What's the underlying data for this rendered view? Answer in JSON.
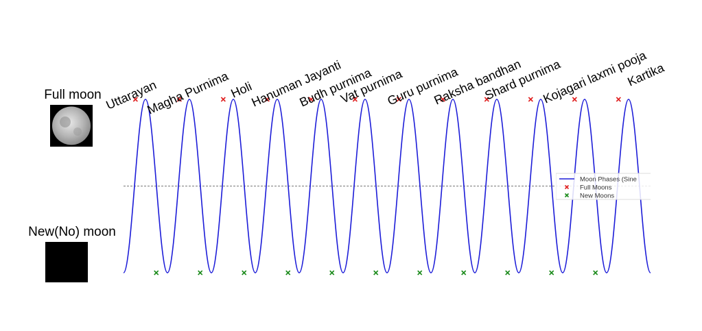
{
  "side_labels": {
    "full_moon": "Full moon",
    "new_moon": "New(No) moon"
  },
  "chart_data": {
    "type": "line",
    "xlim": [
      0,
      354
    ],
    "ylim": [
      -1,
      1
    ],
    "hline": 0,
    "legend": "center right",
    "annotations": [
      "Uttarayan",
      "Magha Purnima",
      "Holi",
      "Hanuman Jayanti",
      "Budh purnima",
      "Vat purnima",
      "Guru purnima",
      "Raksha bandhan",
      "Shard purnima",
      "Kojagari laxmi pooja",
      "Kartika"
    ],
    "series": [
      {
        "name": "Moon Phases (Sine",
        "color": "#1c1cd8",
        "x": [
          0,
          14.75,
          29.5,
          44.25,
          59,
          73.75,
          88.5,
          103.25,
          118,
          132.75,
          147.5,
          162.25,
          177,
          191.75,
          206.5,
          221.25,
          236,
          250.75,
          265.5,
          280.25,
          295,
          309.75,
          324.5,
          339.25,
          354
        ],
        "values": [
          -1,
          1,
          -1,
          1,
          -1,
          1,
          -1,
          1,
          -1,
          1,
          -1,
          1,
          -1,
          1,
          -1,
          1,
          -1,
          1,
          -1,
          1,
          -1,
          1,
          -1,
          1,
          -1
        ]
      },
      {
        "name": "Full Moons",
        "type": "scatter",
        "color": "#e02020",
        "x": [
          8,
          37.5,
          67,
          96.5,
          126,
          155.5,
          185,
          214.5,
          244,
          273.5,
          303,
          332.5
        ],
        "values": [
          1,
          1,
          1,
          1,
          1,
          1,
          1,
          1,
          1,
          1,
          1,
          1
        ]
      },
      {
        "name": "New Moons",
        "type": "scatter",
        "color": "#1a8a1a",
        "x": [
          22,
          51.5,
          81,
          110.5,
          140,
          169.5,
          199,
          228.5,
          258,
          287.5,
          317
        ],
        "values": [
          -1,
          -1,
          -1,
          -1,
          -1,
          -1,
          -1,
          -1,
          -1,
          -1,
          -1
        ]
      }
    ]
  }
}
